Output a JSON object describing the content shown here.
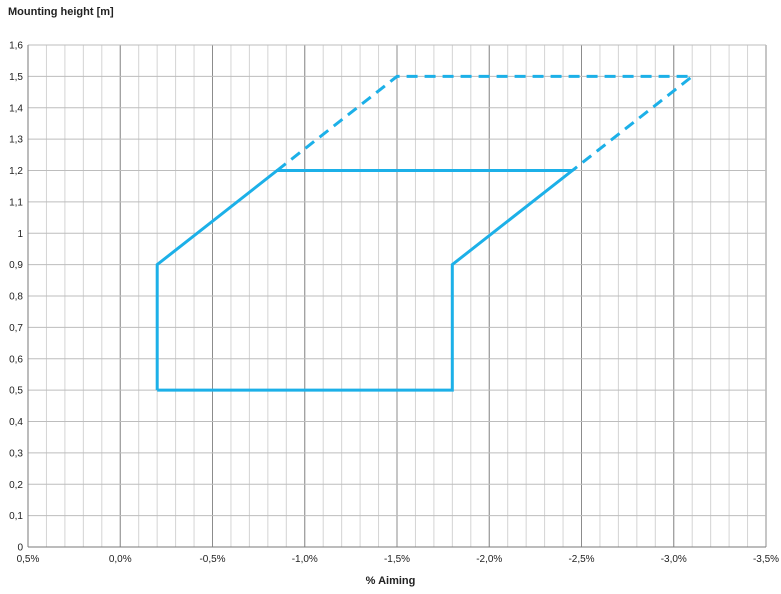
{
  "chart_data": {
    "type": "line",
    "title": "",
    "ylabel": "Mounting  height [m]",
    "xlabel": "% Aiming",
    "xlim": [
      0.5,
      -3.5
    ],
    "ylim": [
      0,
      1.6
    ],
    "x_ticks": [
      0.5,
      0.0,
      -0.5,
      -1.0,
      -1.5,
      -2.0,
      -2.5,
      -3.0,
      -3.5
    ],
    "x_tick_labels": [
      "0,5%",
      "0,0%",
      "-0,5%",
      "-1,0%",
      "-1,5%",
      "-2,0%",
      "-2,5%",
      "-3,0%",
      "-3,5%"
    ],
    "y_ticks": [
      0,
      0.1,
      0.2,
      0.3,
      0.4,
      0.5,
      0.6,
      0.7,
      0.8,
      0.9,
      1.0,
      1.1,
      1.2,
      1.3,
      1.4,
      1.5,
      1.6
    ],
    "y_tick_labels": [
      "0",
      "0,1",
      "0,2",
      "0,3",
      "0,4",
      "0,5",
      "0,6",
      "0,7",
      "0,8",
      "0,9",
      "1",
      "1,1",
      "1,2",
      "1,3",
      "1,4",
      "1,5",
      "1,6"
    ],
    "grid": true,
    "series_color": "#1cb0e8",
    "series": [
      {
        "style": "solid",
        "x": [
          -0.2,
          -1.8,
          -1.8,
          -2.45,
          -0.85,
          -0.2,
          -0.2
        ],
        "y": [
          0.5,
          0.5,
          0.9,
          1.2,
          1.2,
          0.9,
          0.5
        ]
      },
      {
        "style": "dashed",
        "x": [
          -0.85,
          -1.5,
          -3.1,
          -2.45
        ],
        "y": [
          1.2,
          1.5,
          1.5,
          1.2
        ]
      }
    ]
  }
}
